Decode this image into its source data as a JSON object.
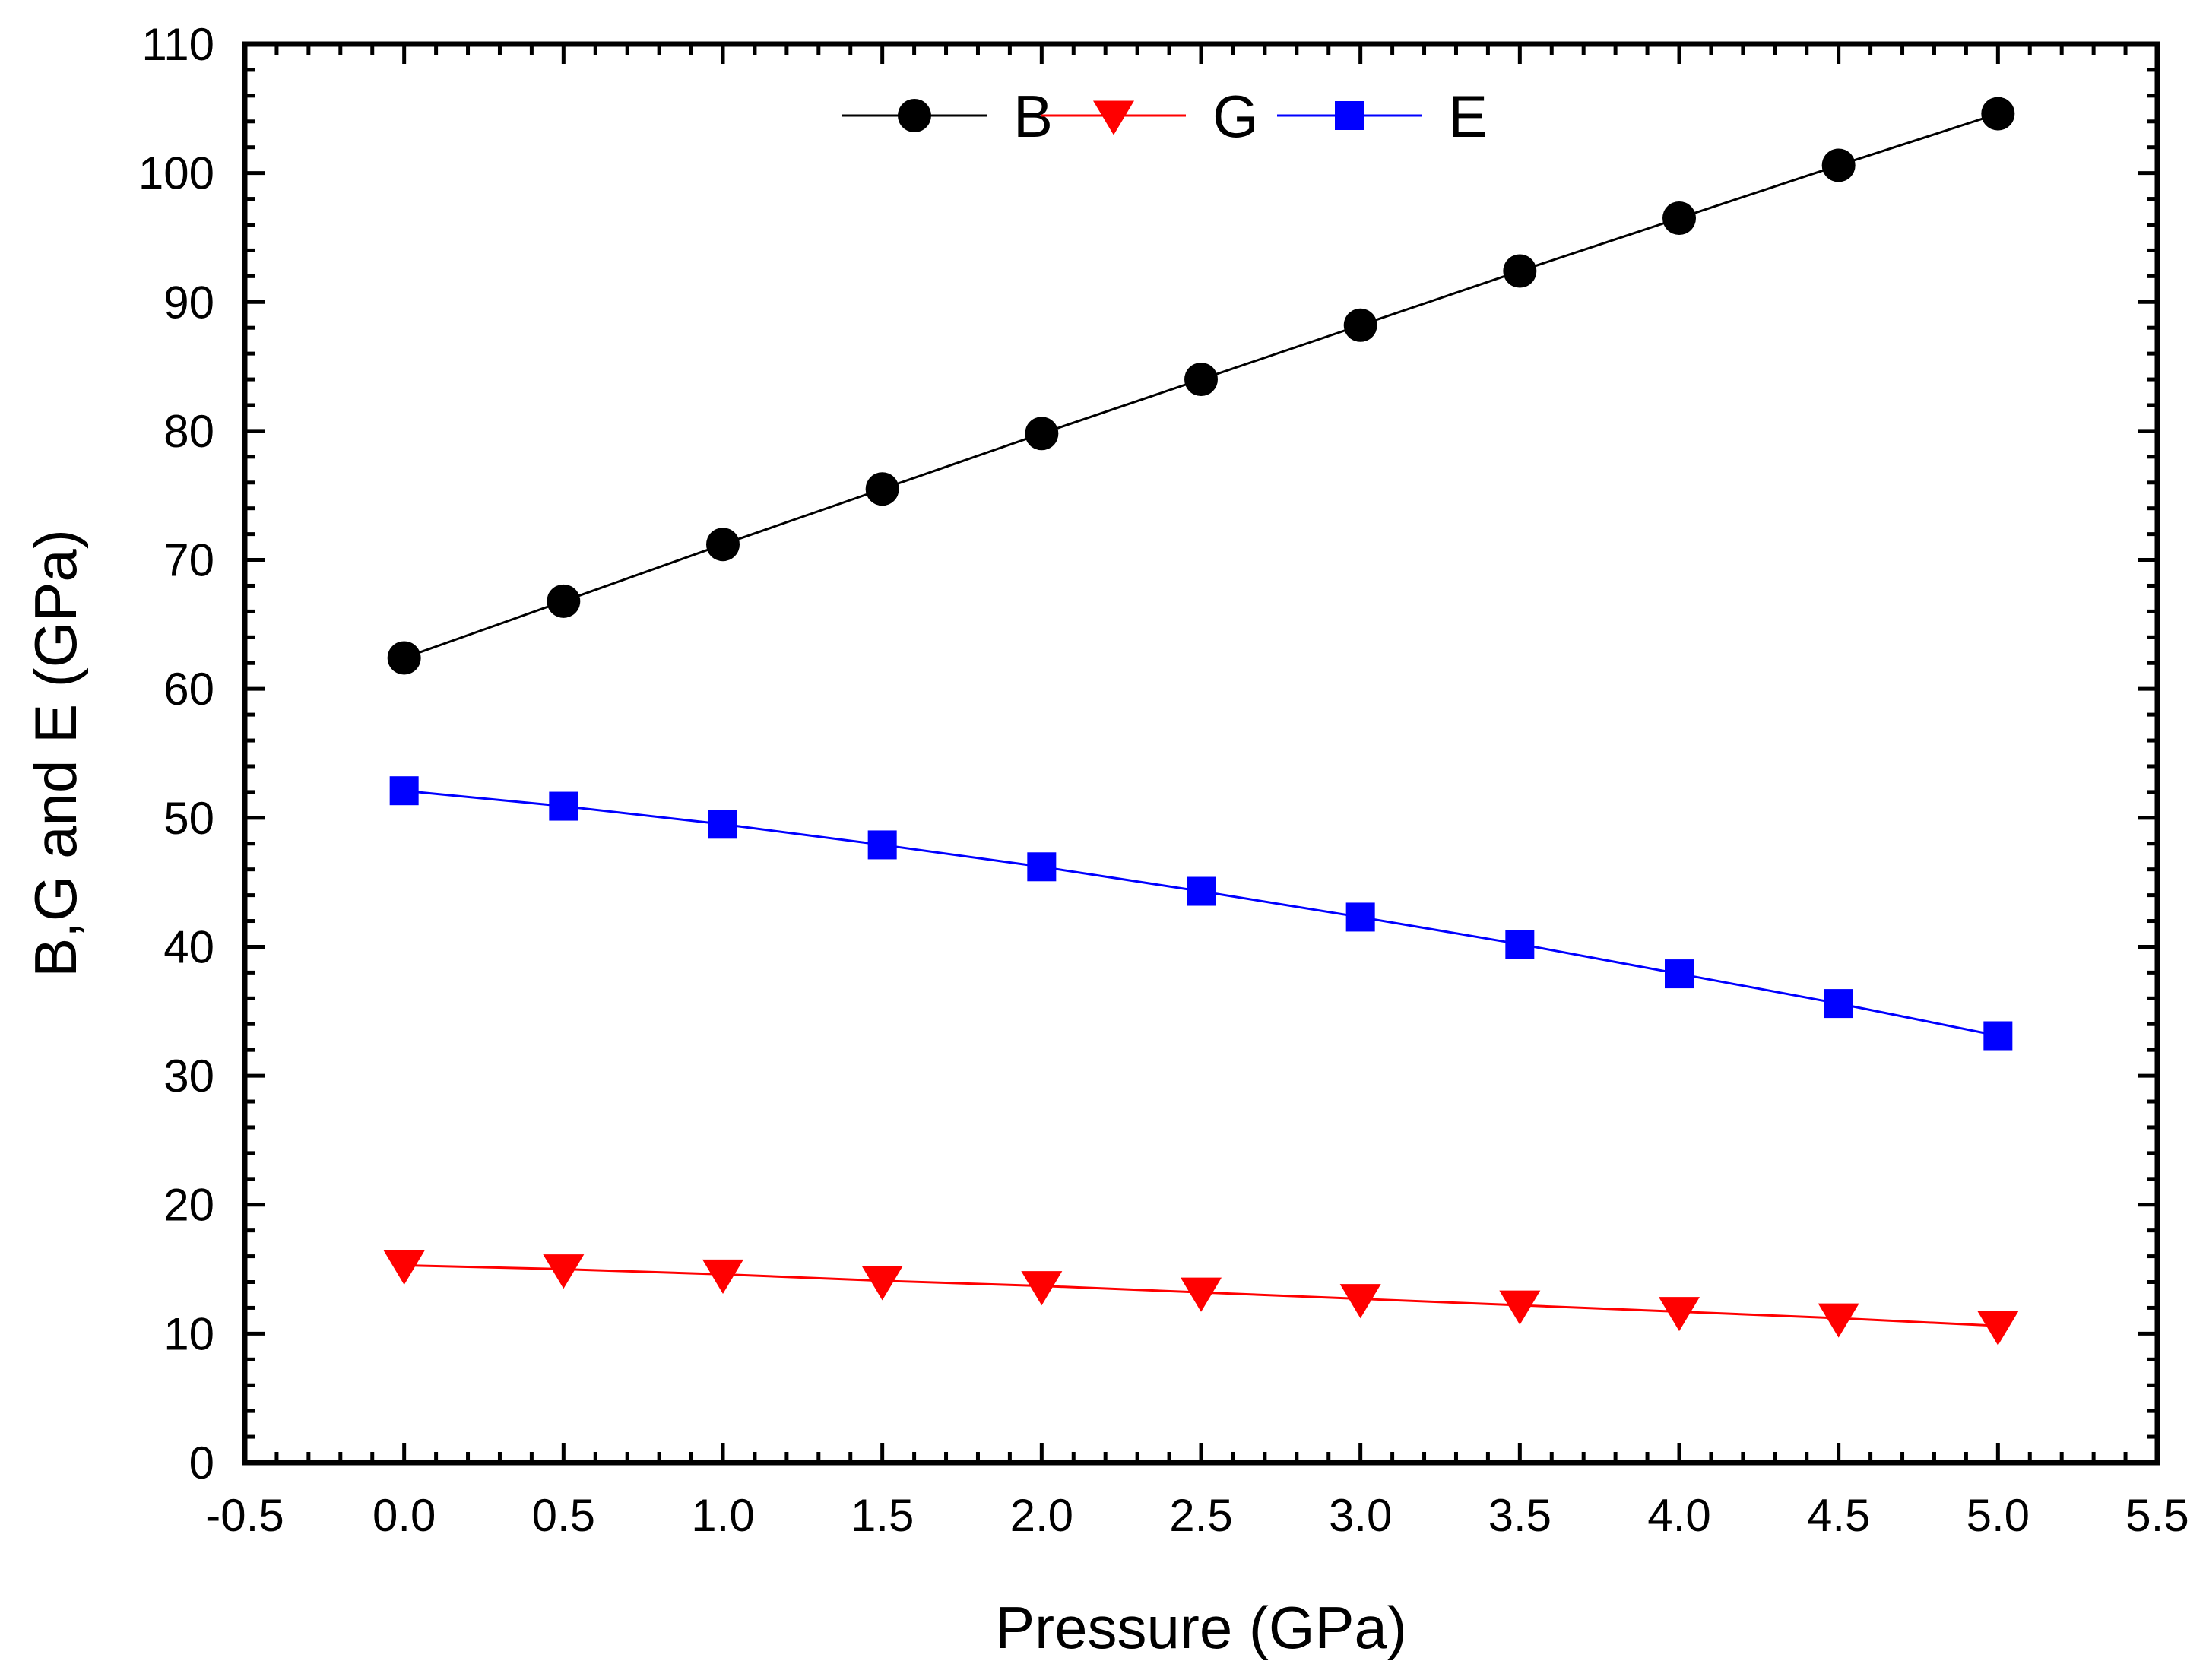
{
  "chart_data": {
    "type": "line",
    "xlabel": "Pressure (GPa)",
    "ylabel": "B,G and E (GPa)",
    "xlim": [
      -0.5,
      5.5
    ],
    "ylim": [
      0,
      110
    ],
    "x_ticks": [
      "-0.5",
      "0.0",
      "0.5",
      "1.0",
      "1.5",
      "2.0",
      "2.5",
      "3.0",
      "3.5",
      "4.0",
      "4.5",
      "5.0",
      "5.5"
    ],
    "y_ticks": [
      "0",
      "10",
      "20",
      "30",
      "40",
      "50",
      "60",
      "70",
      "80",
      "90",
      "100",
      "110"
    ],
    "x": [
      0.0,
      0.5,
      1.0,
      1.5,
      2.0,
      2.5,
      3.0,
      3.5,
      4.0,
      4.5,
      5.0
    ],
    "series": [
      {
        "name": "B",
        "color": "#000000",
        "marker": "circle",
        "values": [
          62.4,
          66.8,
          71.2,
          75.5,
          79.8,
          84.0,
          88.2,
          92.4,
          96.5,
          100.6,
          104.6
        ]
      },
      {
        "name": "G",
        "color": "#ff0000",
        "marker": "triangle-down",
        "values": [
          15.3,
          15.0,
          14.6,
          14.1,
          13.7,
          13.2,
          12.7,
          12.2,
          11.7,
          11.2,
          10.6
        ]
      },
      {
        "name": "E",
        "color": "#0000ff",
        "marker": "square",
        "values": [
          52.1,
          50.9,
          49.5,
          47.9,
          46.2,
          44.3,
          42.3,
          40.2,
          37.9,
          35.6,
          33.1
        ]
      }
    ],
    "legend": {
      "position": "top-center",
      "entries": [
        "B",
        "G",
        "E"
      ]
    },
    "grid": false
  }
}
